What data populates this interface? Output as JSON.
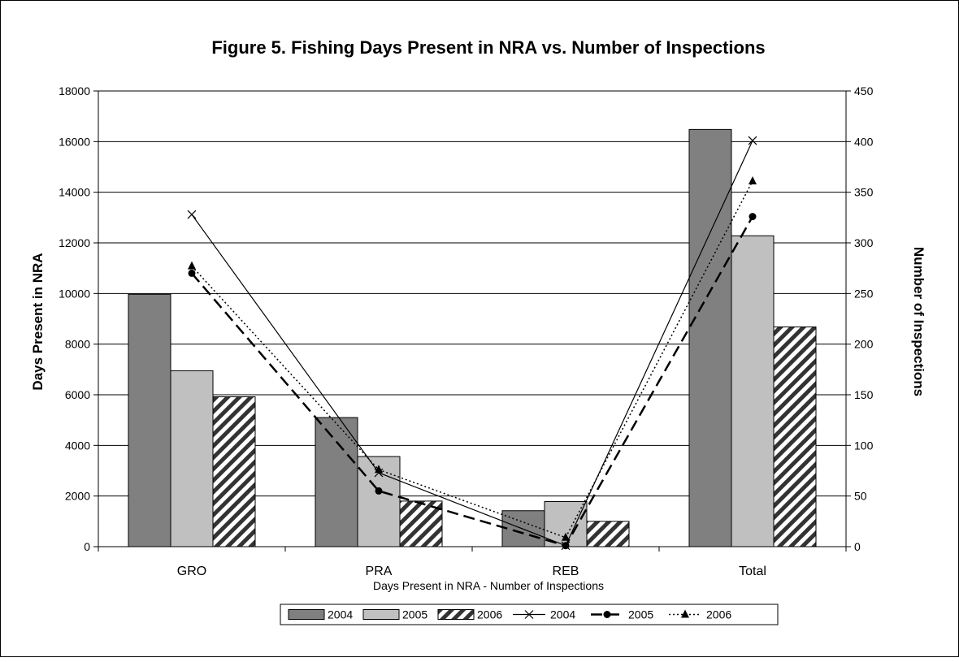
{
  "chart_data": {
    "type": "bar",
    "title": "Figure 5.  Fishing Days Present in NRA vs. Number of Inspections",
    "xlabel": "Days Present in NRA - Number of Inspections",
    "ylabel": "Days Present in NRA",
    "y2label": "Number of Inspections",
    "categories": [
      "GRO",
      "PRA",
      "REB",
      "Total"
    ],
    "ylim": [
      0,
      18000
    ],
    "yticks": [
      0,
      2000,
      4000,
      6000,
      8000,
      10000,
      12000,
      14000,
      16000,
      18000
    ],
    "y2lim": [
      0,
      450
    ],
    "y2ticks": [
      0,
      50,
      100,
      150,
      200,
      250,
      300,
      350,
      400,
      450
    ],
    "grid": true,
    "legend_position": "bottom",
    "bar_series": [
      {
        "name": "2004",
        "values": [
          9970,
          5100,
          1420,
          16480
        ],
        "color": "#808080",
        "pattern": "solid"
      },
      {
        "name": "2005",
        "values": [
          6950,
          3560,
          1780,
          12280
        ],
        "color": "#c0c0c0",
        "pattern": "solid"
      },
      {
        "name": "2006",
        "values": [
          5920,
          1800,
          1000,
          8680
        ],
        "color": "#ffffff",
        "pattern": "hatch"
      }
    ],
    "line_series": [
      {
        "name": "2004",
        "axis": "right",
        "values": [
          328,
          73,
          1,
          401
        ],
        "marker": "x",
        "dash": "solid"
      },
      {
        "name": "2005",
        "axis": "right",
        "values": [
          270,
          55,
          1,
          326
        ],
        "marker": "circle",
        "dash": "dashed"
      },
      {
        "name": "2006",
        "axis": "right",
        "values": [
          277,
          76,
          9,
          361
        ],
        "marker": "triangle",
        "dash": "dotted"
      }
    ]
  }
}
